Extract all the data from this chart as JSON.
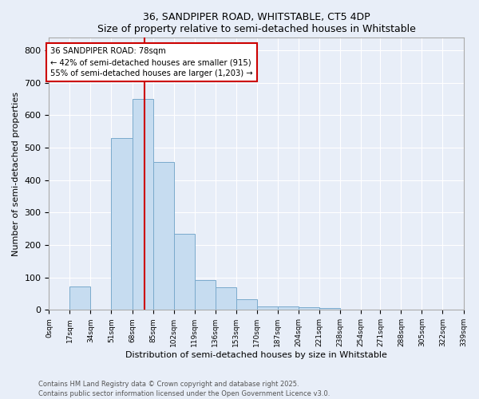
{
  "title1": "36, SANDPIPER ROAD, WHITSTABLE, CT5 4DP",
  "title2": "Size of property relative to semi-detached houses in Whitstable",
  "xlabel": "Distribution of semi-detached houses by size in Whitstable",
  "ylabel": "Number of semi-detached properties",
  "bin_edges": [
    0,
    17,
    34,
    51,
    68,
    85,
    102,
    119,
    136,
    153,
    170,
    187,
    204,
    221,
    238,
    255,
    271,
    288,
    305,
    322,
    339
  ],
  "bar_heights": [
    2,
    72,
    2,
    530,
    650,
    455,
    235,
    93,
    70,
    32,
    10,
    10,
    8,
    5,
    2,
    1,
    0,
    0,
    0,
    0
  ],
  "bar_color": "#c6dcf0",
  "bar_edge_color": "#7aaacc",
  "property_size": 78,
  "vline_color": "#cc0000",
  "annotation_text": "36 SANDPIPER ROAD: 78sqm\n← 42% of semi-detached houses are smaller (915)\n55% of semi-detached houses are larger (1,203) →",
  "annotation_box_color": "#ffffff",
  "annotation_box_edge": "#cc0000",
  "footer1": "Contains HM Land Registry data © Crown copyright and database right 2025.",
  "footer2": "Contains public sector information licensed under the Open Government Licence v3.0.",
  "ylim": [
    0,
    840
  ],
  "xlim": [
    0,
    339
  ],
  "bg_color": "#e8eef8",
  "plot_bg_color": "#e8eef8",
  "tick_labels": [
    "0sqm",
    "17sqm",
    "34sqm",
    "51sqm",
    "68sqm",
    "85sqm",
    "102sqm",
    "119sqm",
    "136sqm",
    "153sqm",
    "170sqm",
    "187sqm",
    "204sqm",
    "221sqm",
    "238sqm",
    "254sqm",
    "271sqm",
    "288sqm",
    "305sqm",
    "322sqm",
    "339sqm"
  ],
  "grid_color": "#ffffff",
  "yticks": [
    0,
    100,
    200,
    300,
    400,
    500,
    600,
    700,
    800
  ]
}
